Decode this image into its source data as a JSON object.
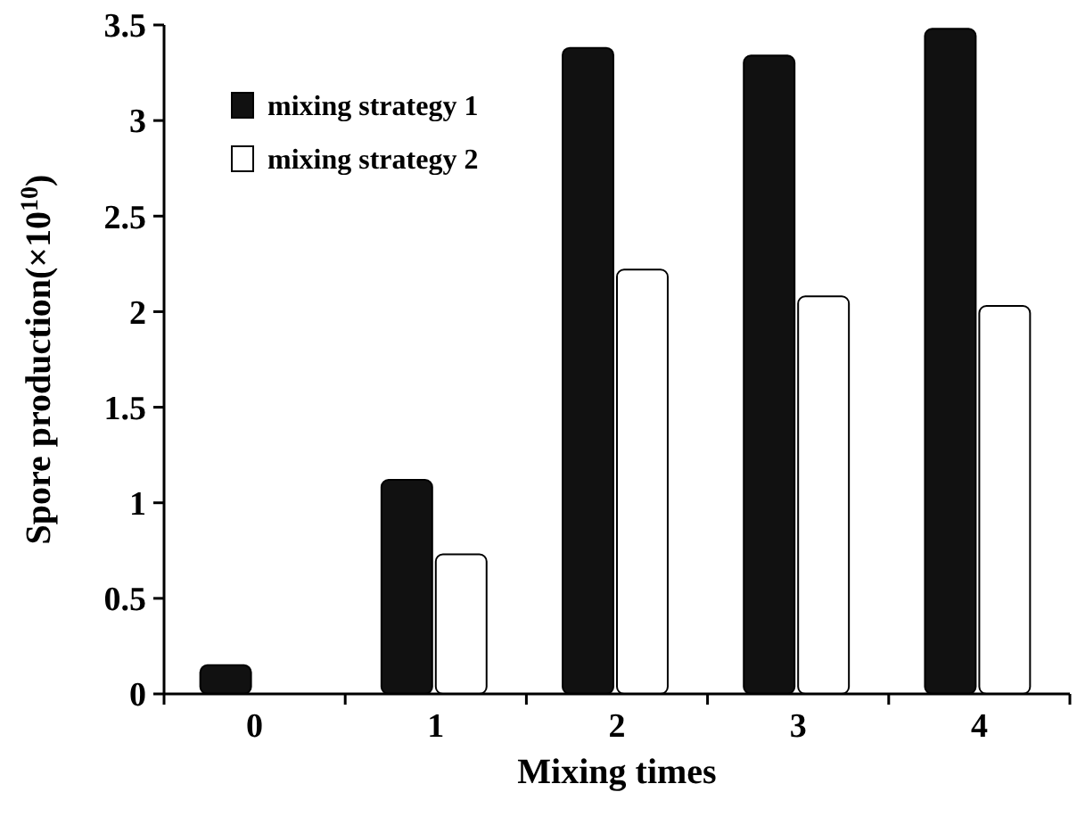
{
  "chart_data": {
    "type": "bar",
    "xlabel": "Mixing times",
    "ylabel": "Spore production(×10$^{10}$)",
    "categories": [
      "0",
      "1",
      "2",
      "3",
      "4"
    ],
    "series": [
      {
        "name": "mixing strategy 1",
        "color": "#111111",
        "values": [
          0.15,
          1.12,
          3.38,
          3.34,
          3.48
        ]
      },
      {
        "name": "mixing strategy 2",
        "color": "#ffffff",
        "values": [
          null,
          0.73,
          2.22,
          2.08,
          2.03
        ]
      }
    ],
    "ylim": [
      0,
      3.5
    ],
    "yticks": [
      0,
      0.5,
      1,
      1.5,
      2,
      2.5,
      3,
      3.5
    ],
    "legend": "top left",
    "grid": false
  }
}
